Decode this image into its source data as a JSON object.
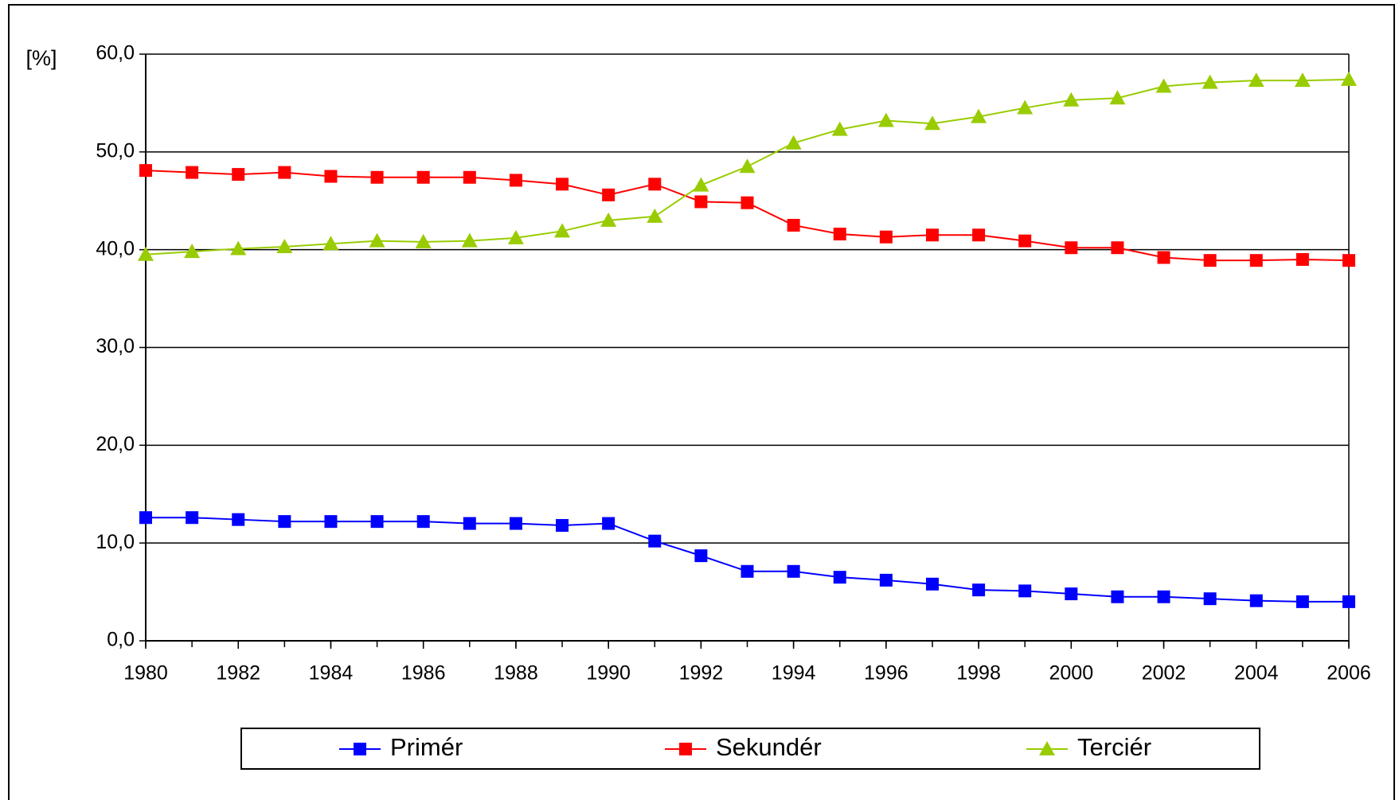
{
  "chart_data": {
    "type": "line",
    "ylabel": "[%]",
    "x": [
      1980,
      1981,
      1982,
      1983,
      1984,
      1985,
      1986,
      1987,
      1988,
      1989,
      1990,
      1991,
      1992,
      1993,
      1994,
      1995,
      1996,
      1997,
      1998,
      1999,
      2000,
      2001,
      2002,
      2003,
      2004,
      2005,
      2006
    ],
    "xlim": [
      1980,
      2006
    ],
    "xticks": [
      1980,
      1982,
      1984,
      1986,
      1988,
      1990,
      1992,
      1994,
      1996,
      1998,
      2000,
      2002,
      2004,
      2006
    ],
    "ylim": [
      0,
      60
    ],
    "yticks": [
      {
        "value": 0,
        "label": "0,0"
      },
      {
        "value": 10,
        "label": "10,0"
      },
      {
        "value": 20,
        "label": "20,0"
      },
      {
        "value": 30,
        "label": "30,0"
      },
      {
        "value": 40,
        "label": "40,0"
      },
      {
        "value": 50,
        "label": "50,0"
      },
      {
        "value": 60,
        "label": "60,0"
      }
    ],
    "grid": true,
    "legend": "bottom",
    "series": [
      {
        "name": "Primér",
        "color": "#0000ff",
        "marker": "square",
        "values": [
          12.6,
          12.6,
          12.4,
          12.2,
          12.2,
          12.2,
          12.2,
          12.0,
          12.0,
          11.8,
          12.0,
          10.2,
          8.7,
          7.1,
          7.1,
          6.5,
          6.2,
          5.8,
          5.2,
          5.1,
          4.8,
          4.5,
          4.5,
          4.3,
          4.1,
          4.0,
          4.0
        ]
      },
      {
        "name": "Sekundér",
        "color": "#ff0000",
        "marker": "square",
        "values": [
          48.1,
          47.9,
          47.7,
          47.9,
          47.5,
          47.4,
          47.4,
          47.4,
          47.1,
          46.7,
          45.6,
          46.7,
          44.9,
          44.8,
          42.5,
          41.6,
          41.3,
          41.5,
          41.5,
          40.9,
          40.2,
          40.2,
          39.2,
          38.9,
          38.9,
          39.0,
          38.9
        ]
      },
      {
        "name": "Terciér",
        "color": "#99cc00",
        "marker": "triangle",
        "values": [
          39.5,
          39.8,
          40.1,
          40.3,
          40.6,
          40.9,
          40.8,
          40.9,
          41.2,
          41.9,
          43.0,
          43.4,
          46.6,
          48.5,
          50.9,
          52.3,
          53.2,
          52.9,
          53.6,
          54.5,
          55.3,
          55.5,
          56.7,
          57.1,
          57.3,
          57.3,
          57.4
        ]
      }
    ]
  }
}
